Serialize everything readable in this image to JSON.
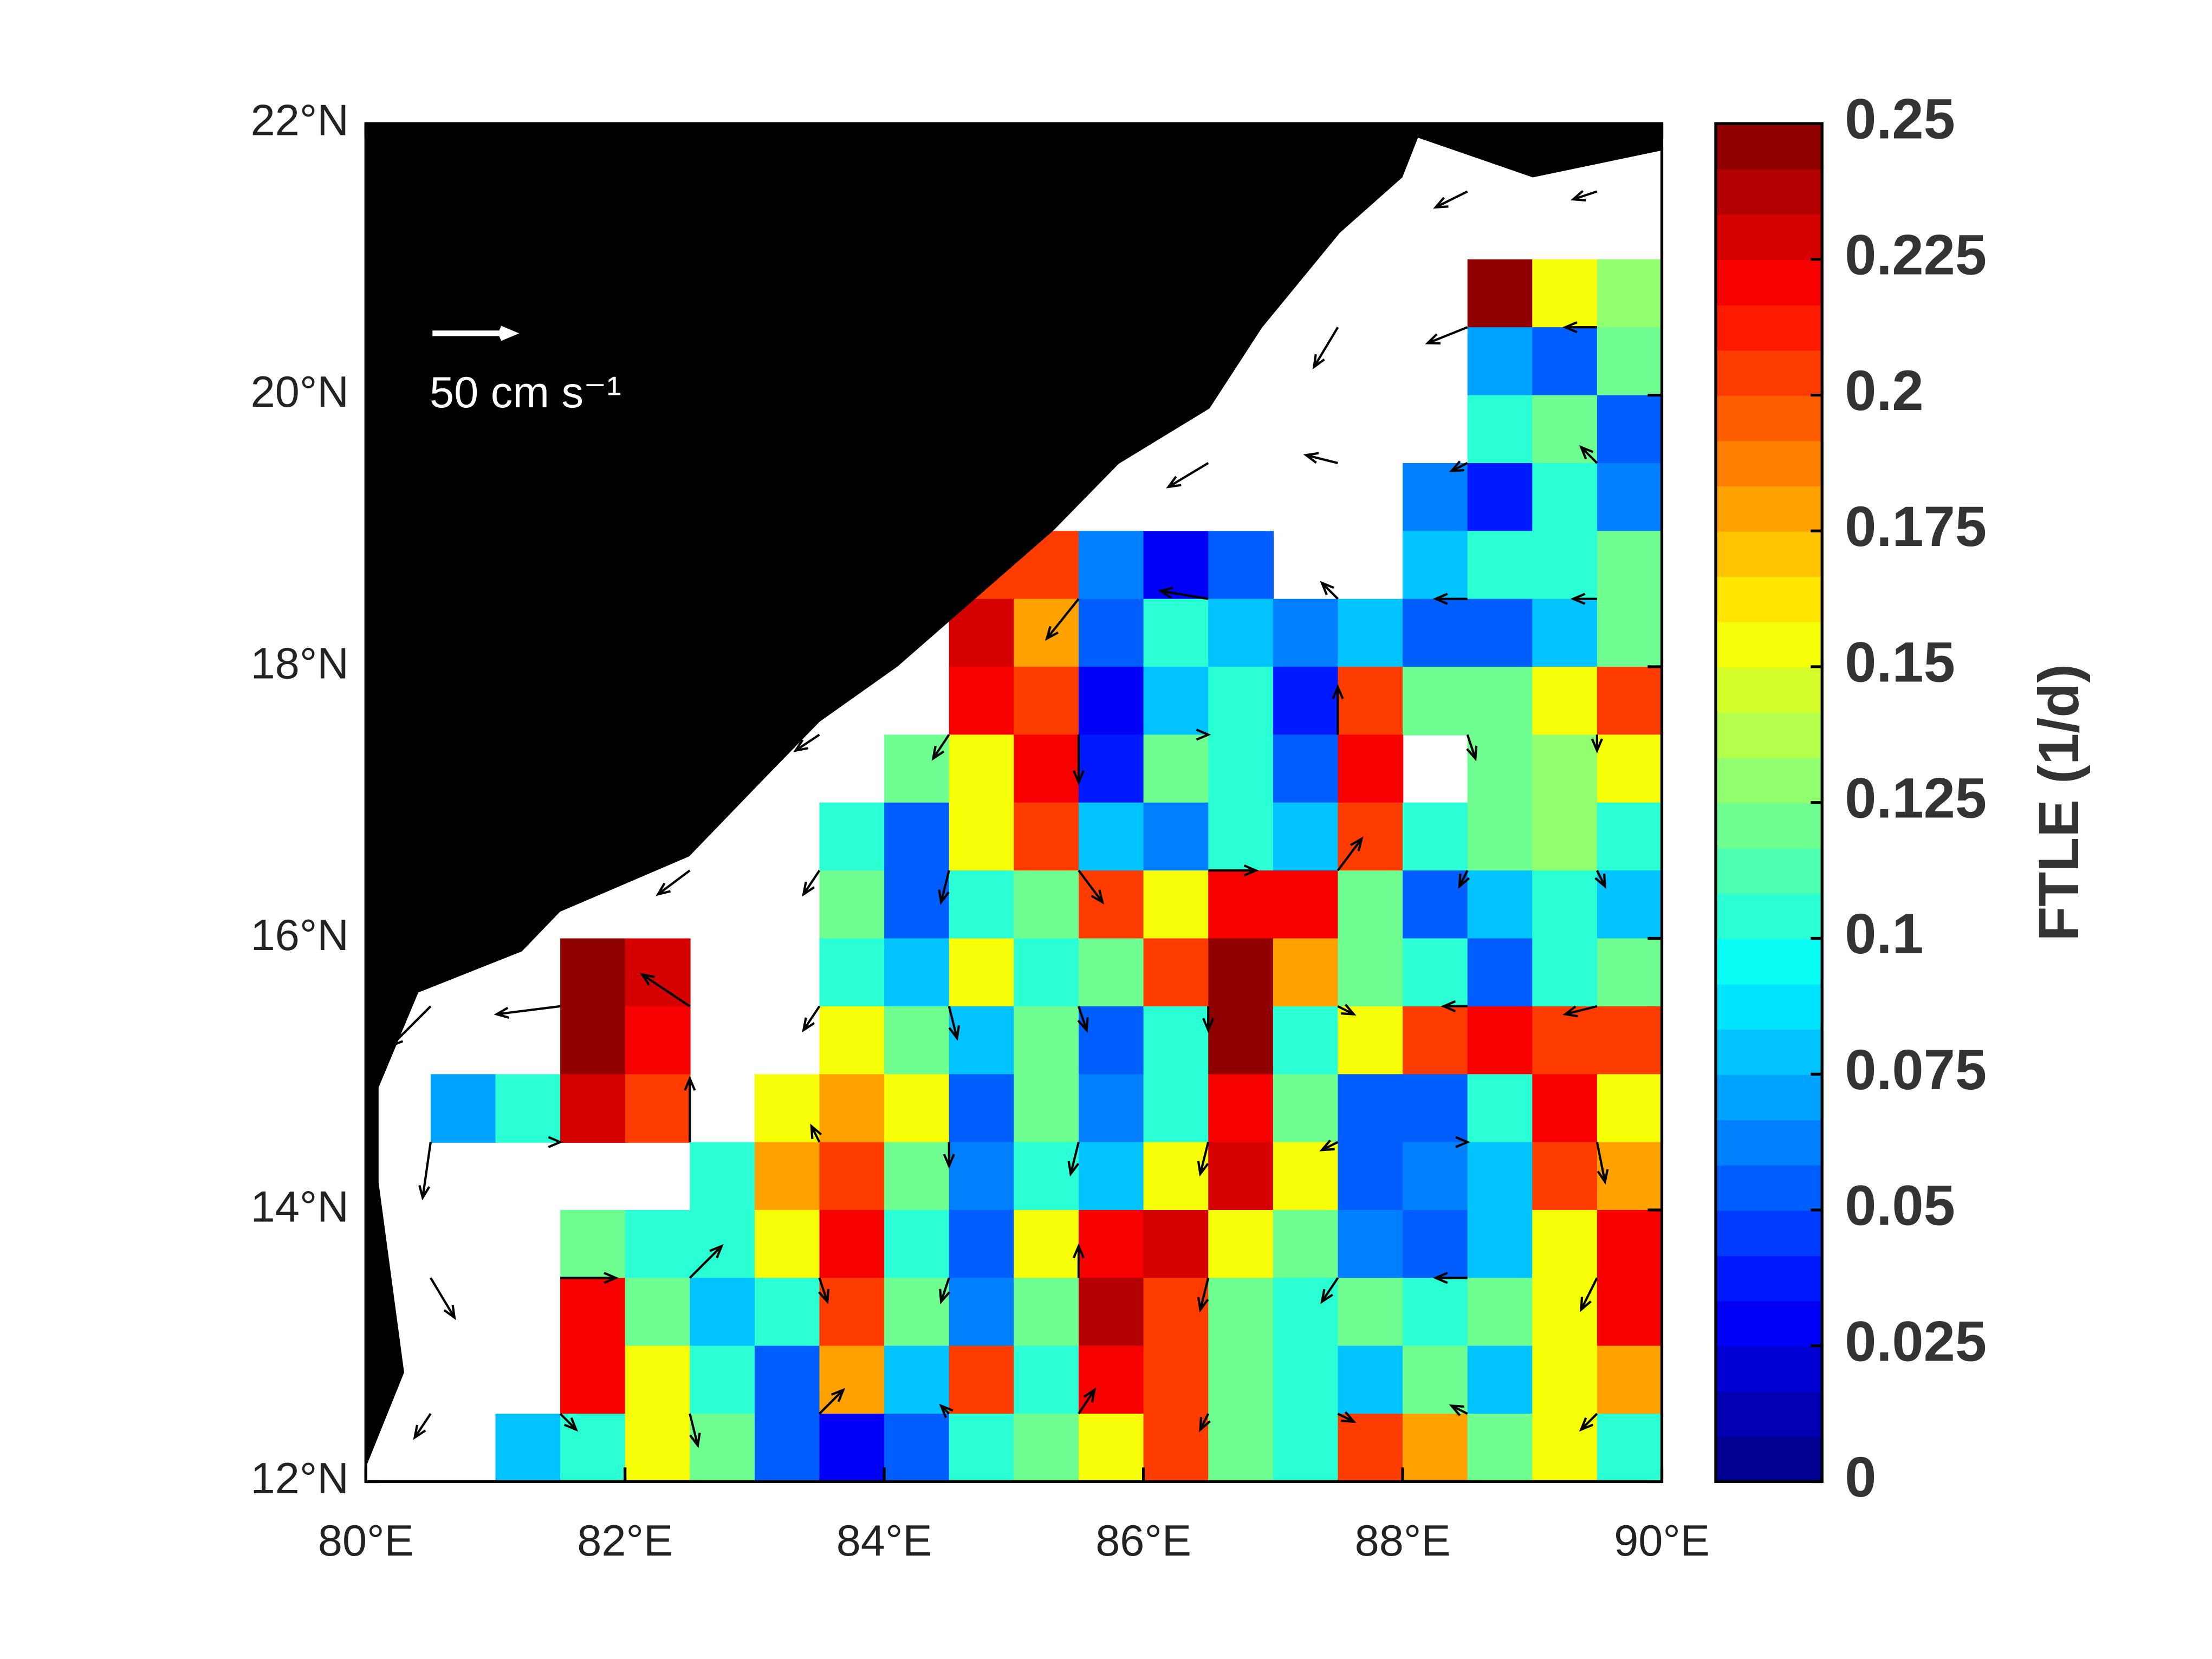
{
  "chart_data": {
    "type": "map",
    "xlim": [
      80,
      90
    ],
    "ylim": [
      12,
      22
    ],
    "xticks": [
      {
        "value": 80,
        "label": "80°E"
      },
      {
        "value": 82,
        "label": "82°E"
      },
      {
        "value": 84,
        "label": "84°E"
      },
      {
        "value": 86,
        "label": "86°E"
      },
      {
        "value": 88,
        "label": "88°E"
      },
      {
        "value": 90,
        "label": "90°E"
      }
    ],
    "yticks": [
      {
        "value": 12,
        "label": "12°N"
      },
      {
        "value": 14,
        "label": "14°N"
      },
      {
        "value": 16,
        "label": "16°N"
      },
      {
        "value": 18,
        "label": "18°N"
      },
      {
        "value": 20,
        "label": "20°N"
      },
      {
        "value": 22,
        "label": "22°N"
      }
    ],
    "colorbar": {
      "label": "FTLE (1/d)",
      "clim": [
        0,
        0.25
      ],
      "ticks": [
        0,
        0.025,
        0.05,
        0.075,
        0.1,
        0.125,
        0.15,
        0.175,
        0.2,
        0.225,
        0.25
      ],
      "colormap": "jet",
      "levels": 30
    },
    "land_color": "#000000",
    "scale_arrow": {
      "value": 50,
      "label": "50 cm s⁻¹",
      "color": "#ffffff"
    },
    "ftle": {
      "lon": [
        80.25,
        80.75,
        81.25,
        81.75,
        82.25,
        82.75,
        83.25,
        83.75,
        84.25,
        84.75,
        85.25,
        85.75,
        86.25,
        86.75,
        87.25,
        87.75,
        88.25,
        88.75,
        89.25,
        89.75
      ],
      "lat": [
        21.75,
        21.25,
        20.75,
        20.25,
        19.75,
        19.25,
        18.75,
        18.25,
        17.75,
        17.25,
        16.75,
        16.25,
        15.75,
        15.25,
        14.75,
        14.25,
        13.75,
        13.25,
        12.75,
        12.25
      ],
      "values": [
        [
          null,
          null,
          null,
          null,
          null,
          null,
          null,
          null,
          null,
          null,
          null,
          null,
          null,
          null,
          null,
          null,
          null,
          null,
          null,
          null
        ],
        [
          null,
          null,
          null,
          null,
          null,
          null,
          null,
          null,
          null,
          null,
          null,
          null,
          null,
          null,
          null,
          null,
          null,
          null,
          null,
          null
        ],
        [
          null,
          null,
          null,
          null,
          null,
          null,
          null,
          null,
          null,
          null,
          null,
          null,
          null,
          null,
          null,
          null,
          null,
          0.25,
          0.15,
          0.13
        ],
        [
          null,
          null,
          null,
          null,
          null,
          null,
          null,
          null,
          null,
          null,
          null,
          null,
          null,
          null,
          null,
          null,
          null,
          0.07,
          0.05,
          0.12
        ],
        [
          null,
          null,
          null,
          null,
          null,
          null,
          null,
          null,
          null,
          null,
          null,
          null,
          null,
          null,
          null,
          null,
          null,
          0.1,
          0.12,
          0.05
        ],
        [
          null,
          null,
          null,
          null,
          null,
          null,
          null,
          null,
          null,
          null,
          null,
          null,
          null,
          null,
          null,
          null,
          0.06,
          0.04,
          0.1,
          0.06
        ],
        [
          null,
          null,
          null,
          null,
          null,
          null,
          null,
          null,
          null,
          0.2,
          0.2,
          0.06,
          0.03,
          0.05,
          null,
          null,
          0.08,
          0.1,
          0.1,
          0.12
        ],
        [
          null,
          null,
          null,
          null,
          null,
          null,
          null,
          null,
          null,
          0.23,
          0.18,
          0.05,
          0.1,
          0.08,
          0.06,
          0.08,
          0.05,
          0.05,
          0.08,
          0.12
        ],
        [
          null,
          null,
          null,
          null,
          null,
          null,
          null,
          null,
          null,
          0.22,
          0.2,
          0.03,
          0.08,
          0.1,
          0.04,
          0.2,
          0.12,
          0.12,
          0.15,
          0.2
        ],
        [
          null,
          null,
          null,
          null,
          null,
          null,
          null,
          null,
          0.12,
          0.15,
          0.22,
          0.04,
          0.12,
          0.1,
          0.05,
          0.22,
          null,
          0.12,
          0.13,
          0.15
        ],
        [
          null,
          null,
          null,
          null,
          null,
          null,
          null,
          0.1,
          0.05,
          0.15,
          0.2,
          0.08,
          0.06,
          0.1,
          0.08,
          0.2,
          0.1,
          0.12,
          0.13,
          0.1
        ],
        [
          null,
          null,
          null,
          null,
          null,
          null,
          null,
          0.12,
          0.05,
          0.1,
          0.12,
          0.2,
          0.15,
          0.22,
          0.22,
          0.12,
          0.05,
          0.08,
          0.1,
          0.08
        ],
        [
          null,
          null,
          null,
          0.25,
          0.23,
          null,
          null,
          0.1,
          0.08,
          0.15,
          0.1,
          0.12,
          0.2,
          0.25,
          0.18,
          0.12,
          0.1,
          0.05,
          0.1,
          0.12
        ],
        [
          null,
          null,
          null,
          0.25,
          0.22,
          null,
          null,
          0.15,
          0.12,
          0.08,
          0.12,
          0.05,
          0.1,
          0.25,
          0.1,
          0.15,
          0.2,
          0.22,
          0.2,
          0.2
        ],
        [
          null,
          0.07,
          0.1,
          0.23,
          0.2,
          null,
          0.15,
          0.18,
          0.15,
          0.05,
          0.12,
          0.06,
          0.1,
          0.22,
          0.12,
          0.05,
          0.05,
          0.1,
          0.22,
          0.15
        ],
        [
          null,
          null,
          null,
          null,
          null,
          0.1,
          0.18,
          0.2,
          0.12,
          0.06,
          0.1,
          0.08,
          0.15,
          0.23,
          0.15,
          0.05,
          0.06,
          0.08,
          0.2,
          0.18
        ],
        [
          null,
          null,
          null,
          0.12,
          0.1,
          0.1,
          0.15,
          0.22,
          0.1,
          0.05,
          0.15,
          0.22,
          0.23,
          0.15,
          0.12,
          0.06,
          0.05,
          0.08,
          0.15,
          0.22
        ],
        [
          null,
          null,
          null,
          0.22,
          0.12,
          0.08,
          0.1,
          0.2,
          0.12,
          0.06,
          0.12,
          0.24,
          0.2,
          0.12,
          0.1,
          0.12,
          0.1,
          0.12,
          0.15,
          0.22
        ],
        [
          null,
          null,
          null,
          0.22,
          0.15,
          0.1,
          0.05,
          0.18,
          0.08,
          0.2,
          0.1,
          0.22,
          0.2,
          0.12,
          0.1,
          0.08,
          0.12,
          0.08,
          0.15,
          0.18
        ],
        [
          null,
          null,
          0.08,
          0.1,
          0.15,
          0.12,
          0.05,
          0.03,
          0.05,
          0.1,
          0.12,
          0.15,
          0.2,
          0.12,
          0.1,
          0.2,
          0.18,
          0.12,
          0.15,
          0.1
        ]
      ]
    },
    "vectors": {
      "lon": [
        80.5,
        81.5,
        82.5,
        83.5,
        84.5,
        85.5,
        86.5,
        87.5,
        88.5,
        89.5
      ],
      "lat": [
        21.5,
        20.5,
        19.5,
        18.5,
        17.5,
        16.5,
        15.5,
        14.5,
        13.5,
        12.5
      ],
      "u": [
        [
          null,
          null,
          null,
          null,
          null,
          null,
          null,
          null,
          -20,
          -15
        ],
        [
          null,
          null,
          null,
          null,
          null,
          null,
          null,
          -15,
          -25,
          -20
        ],
        [
          null,
          null,
          null,
          null,
          null,
          null,
          -25,
          -20,
          -10,
          -10
        ],
        [
          null,
          null,
          null,
          null,
          null,
          -20,
          -30,
          -10,
          -20,
          -15
        ],
        [
          null,
          null,
          null,
          -15,
          -10,
          0,
          0,
          0,
          5,
          0
        ],
        [
          null,
          null,
          -20,
          -10,
          -5,
          15,
          30,
          15,
          -5,
          5
        ],
        [
          -25,
          -40,
          -30,
          -10,
          5,
          5,
          0,
          10,
          -15,
          -20
        ],
        [
          -5,
          0,
          0,
          -5,
          0,
          -5,
          -5,
          -10,
          0,
          5
        ],
        [
          15,
          35,
          20,
          5,
          -5,
          0,
          -5,
          -10,
          -20,
          -10
        ],
        [
          -10,
          10,
          5,
          15,
          -5,
          10,
          -5,
          10,
          -10,
          -10
        ]
      ],
      "v": [
        [
          null,
          null,
          null,
          null,
          null,
          null,
          null,
          null,
          -10,
          -5
        ],
        [
          null,
          null,
          null,
          null,
          null,
          null,
          null,
          -25,
          -10,
          0
        ],
        [
          null,
          null,
          null,
          null,
          null,
          null,
          -15,
          5,
          -5,
          10
        ],
        [
          null,
          null,
          null,
          null,
          null,
          -25,
          5,
          10,
          0,
          0
        ],
        [
          null,
          null,
          null,
          -10,
          -15,
          -30,
          0,
          30,
          -15,
          -10
        ],
        [
          null,
          null,
          -15,
          -15,
          -20,
          -20,
          0,
          20,
          -10,
          -10
        ],
        [
          -25,
          -5,
          20,
          -15,
          -20,
          -15,
          -15,
          -5,
          0,
          -5
        ],
        [
          -35,
          0,
          40,
          10,
          -15,
          -20,
          -20,
          -5,
          0,
          -25
        ],
        [
          -25,
          0,
          20,
          -15,
          -15,
          20,
          -20,
          -15,
          0,
          -20
        ],
        [
          -15,
          -10,
          -20,
          15,
          5,
          15,
          -10,
          -5,
          5,
          -10
        ]
      ]
    }
  }
}
